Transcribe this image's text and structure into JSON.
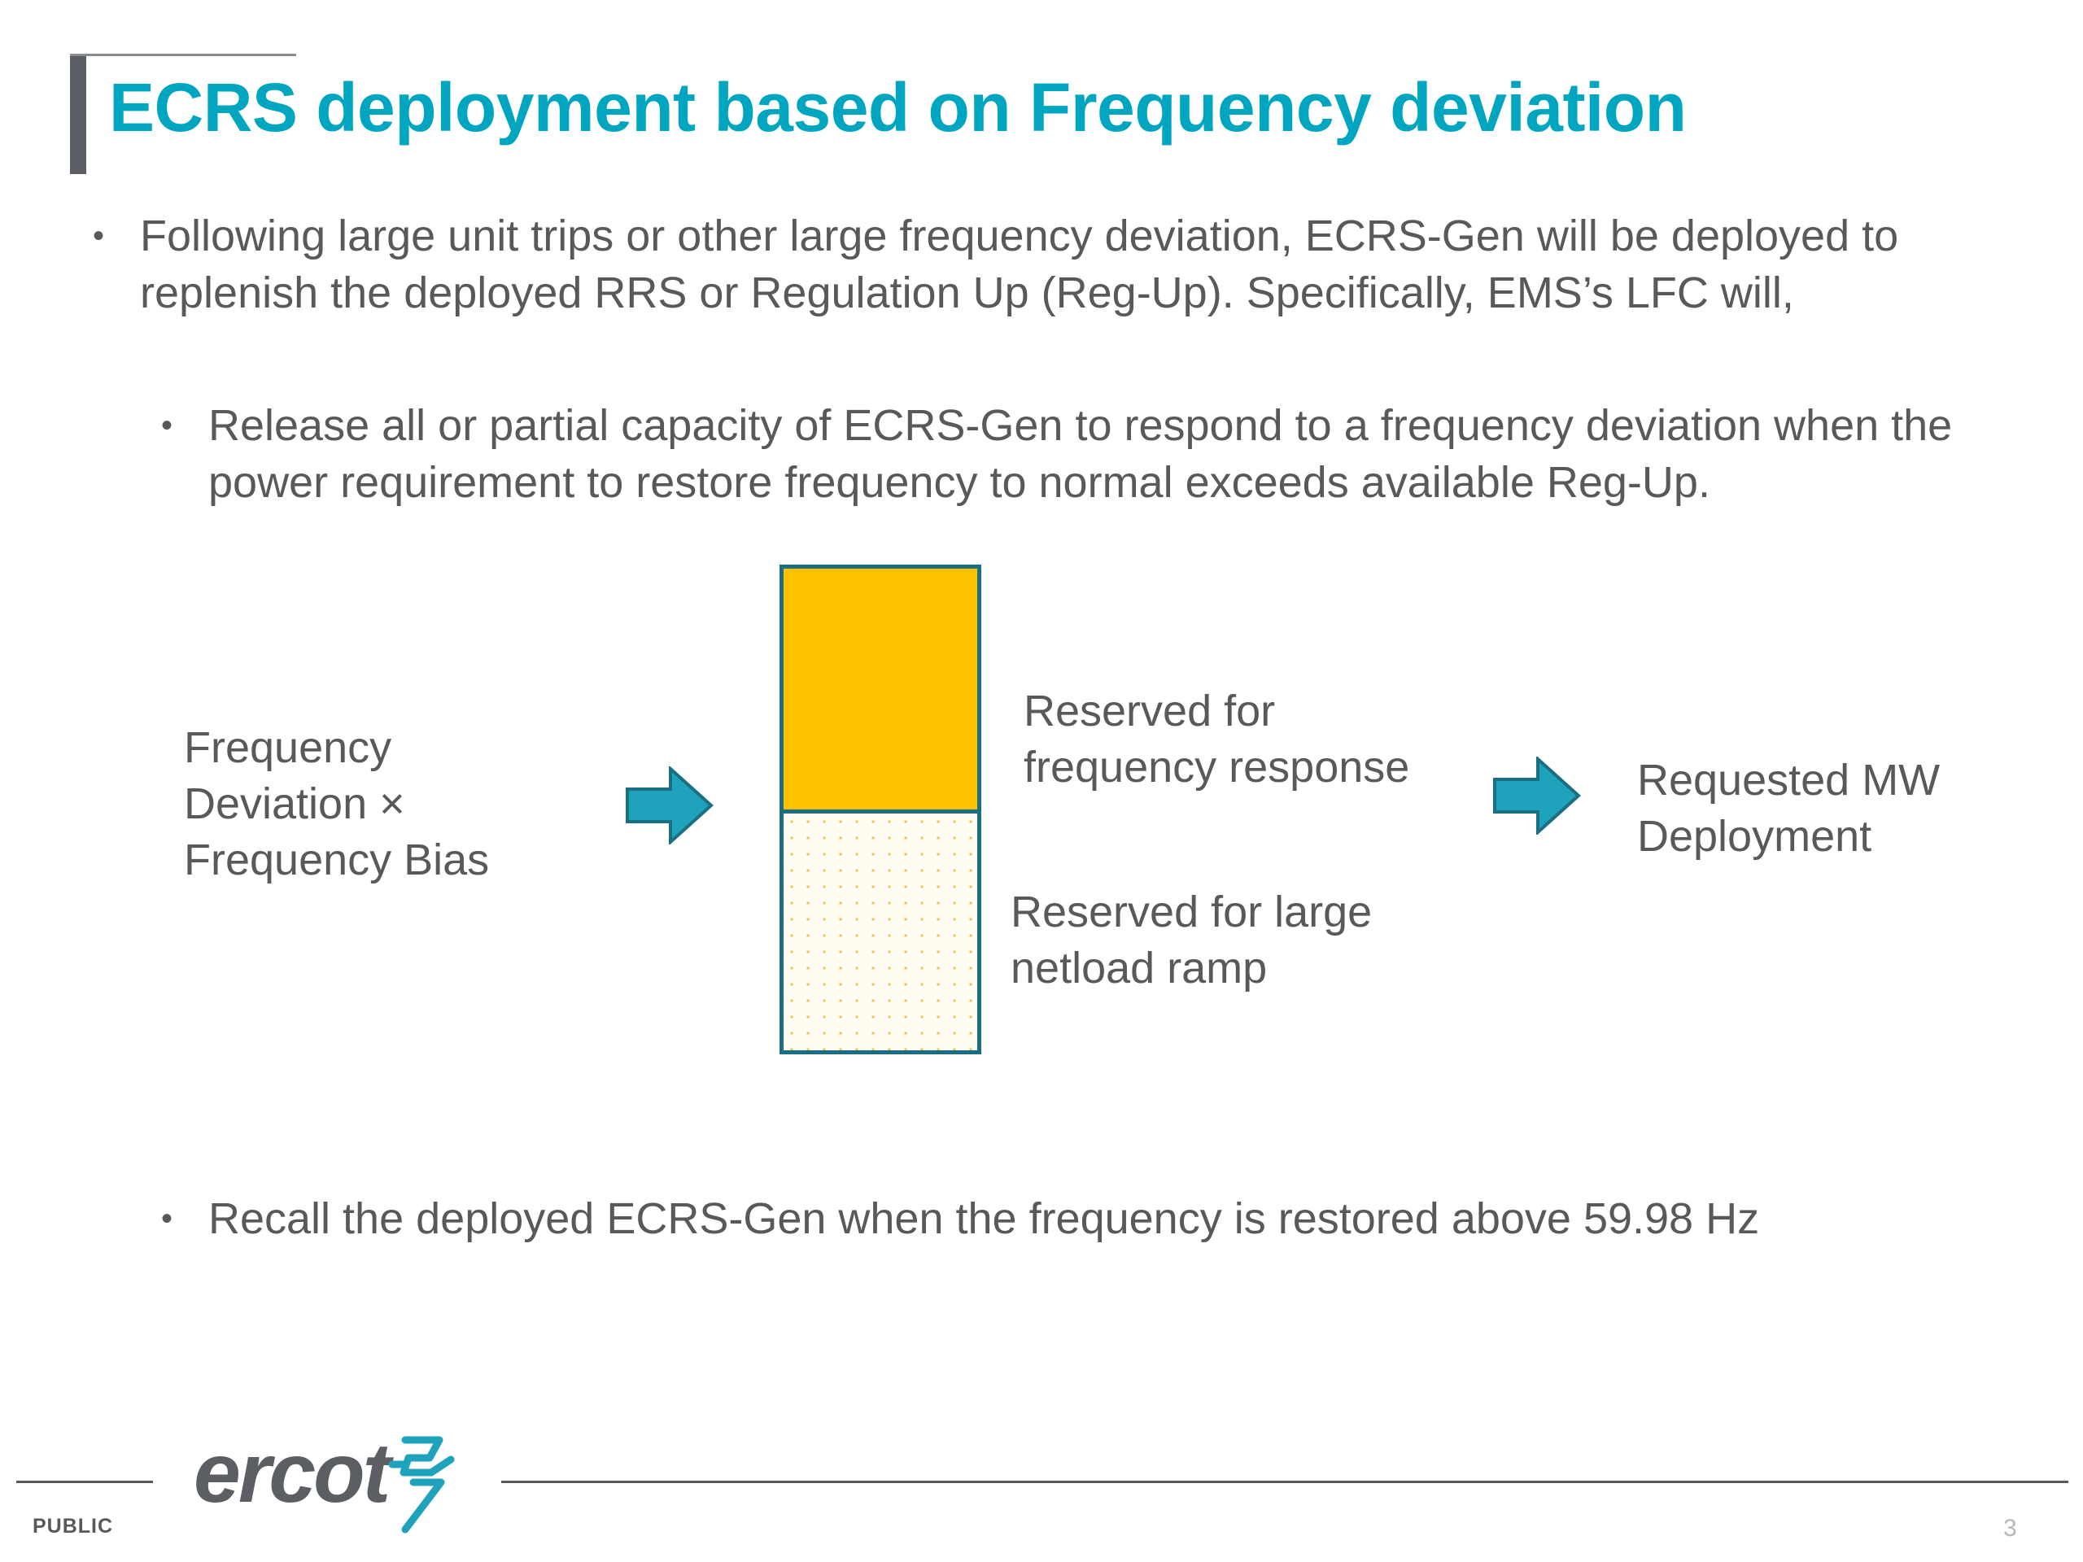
{
  "slide": {
    "title": "ECRS deployment based on Frequency deviation",
    "bullets": [
      "Following large unit trips or other large frequency deviation, ECRS-Gen will be deployed to replenish the deployed RRS or Regulation Up (Reg-Up). Specifically, EMS’s LFC will,",
      "Release all or partial capacity of ECRS-Gen to respond to a frequency deviation when the power requirement to restore frequency to normal exceeds available Reg-Up.",
      "Recall the deployed ECRS-Gen when the frequency is restored above 59.98 Hz"
    ],
    "bullet_symbol": "•"
  },
  "diagram": {
    "input_lines": [
      "Frequency",
      "Deviation ×",
      "Frequency Bias"
    ],
    "bar_top_label_lines": [
      "Reserved for",
      "frequency response"
    ],
    "bar_bottom_label_lines": [
      "Reserved for large",
      "netload ramp"
    ],
    "output_lines": [
      "Requested MW",
      "Deployment"
    ],
    "colors": {
      "reserved_frequency_response": "#ffc000",
      "bar_border": "#1b6f82",
      "arrow_fill": "#1fa3bd",
      "arrow_stroke": "#1b6f82"
    }
  },
  "footer": {
    "logo": "ercot",
    "classification": "PUBLIC",
    "page_number": "3"
  },
  "theme": {
    "title_color": "#00a6bf",
    "text_color": "#58595b"
  }
}
